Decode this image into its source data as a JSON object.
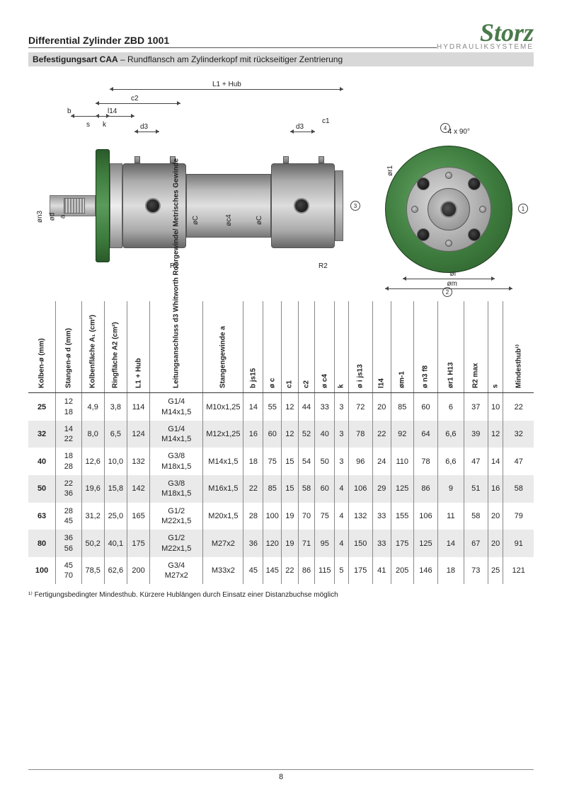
{
  "header": {
    "title": "Differential Zylinder ZBD 1001",
    "logo_main": "Storz",
    "logo_sub": "HYDRAULIKSYSTEME"
  },
  "subtitle": {
    "bold": "Befestigungsart CAA",
    "rest": " – Rundflansch am Zylinderkopf mit rückseitiger Zentrierung"
  },
  "diagram": {
    "flange_color": "#3d7a3d",
    "metal_light": "#ddd",
    "metal_dark": "#777",
    "labels": {
      "l1": "L1 + Hub",
      "c2": "c2",
      "b": "b",
      "l14": "l14",
      "s": "s",
      "k": "k",
      "d3a": "d3",
      "d3b": "d3",
      "c1": "c1",
      "on3": "øn3",
      "od": "ød",
      "a": "a",
      "oc_l": "øC",
      "oc4": "øc4",
      "oc_r": "øC",
      "r2a": "R2",
      "r2b": "R2",
      "angle": "4 x 90°",
      "or1": "ør1",
      "oi": "øi",
      "om": "øm",
      "co1": "1",
      "co2": "2",
      "co3": "3",
      "co4": "4"
    }
  },
  "table": {
    "columns": [
      "Kolben-ø (mm)",
      "Stangen-ø d (mm)",
      "Kolbenfläche A₁ (cm²)",
      "Ringfläche A2 (cm²)",
      "L1 + Hub",
      "Leitungsanschluss d3\nWhitworth Rohrgewinde/\nMetrisches Gewinde",
      "Stangengewinde a",
      "b js15",
      "ø c",
      "c1",
      "c2",
      "ø c4",
      "k",
      "ø i js13",
      "l14",
      "øm-1",
      "ø n3 f8",
      "ør1 H13",
      "R2 max",
      "s",
      "Mindesthub¹⁾"
    ],
    "rows": [
      {
        "kolben": "25",
        "stangen": [
          "12",
          "18"
        ],
        "a1": "4,9",
        "a2": "3,8",
        "l1": "114",
        "d3": [
          "G1/4",
          "M14x1,5"
        ],
        "a": "M10x1,25",
        "b": "14",
        "c": "55",
        "c1": "12",
        "c2": "44",
        "c4": "33",
        "k": "3",
        "i": "72",
        "l14": "20",
        "m": "85",
        "n3": "60",
        "r1": "6",
        "r2": "37",
        "s": "10",
        "min": "22"
      },
      {
        "kolben": "32",
        "stangen": [
          "14",
          "22"
        ],
        "a1": "8,0",
        "a2": "6,5",
        "l1": "124",
        "d3": [
          "G1/4",
          "M14x1,5"
        ],
        "a": "M12x1,25",
        "b": "16",
        "c": "60",
        "c1": "12",
        "c2": "52",
        "c4": "40",
        "k": "3",
        "i": "78",
        "l14": "22",
        "m": "92",
        "n3": "64",
        "r1": "6,6",
        "r2": "39",
        "s": "12",
        "min": "32"
      },
      {
        "kolben": "40",
        "stangen": [
          "18",
          "28"
        ],
        "a1": "12,6",
        "a2": "10,0",
        "l1": "132",
        "d3": [
          "G3/8",
          "M18x1,5"
        ],
        "a": "M14x1,5",
        "b": "18",
        "c": "75",
        "c1": "15",
        "c2": "54",
        "c4": "50",
        "k": "3",
        "i": "96",
        "l14": "24",
        "m": "110",
        "n3": "78",
        "r1": "6,6",
        "r2": "47",
        "s": "14",
        "min": "47"
      },
      {
        "kolben": "50",
        "stangen": [
          "22",
          "36"
        ],
        "a1": "19,6",
        "a2": "15,8",
        "l1": "142",
        "d3": [
          "G3/8",
          "M18x1,5"
        ],
        "a": "M16x1,5",
        "b": "22",
        "c": "85",
        "c1": "15",
        "c2": "58",
        "c4": "60",
        "k": "4",
        "i": "106",
        "l14": "29",
        "m": "125",
        "n3": "86",
        "r1": "9",
        "r2": "51",
        "s": "16",
        "min": "58"
      },
      {
        "kolben": "63",
        "stangen": [
          "28",
          "45"
        ],
        "a1": "31,2",
        "a2": "25,0",
        "l1": "165",
        "d3": [
          "G1/2",
          "M22x1,5"
        ],
        "a": "M20x1,5",
        "b": "28",
        "c": "100",
        "c1": "19",
        "c2": "70",
        "c4": "75",
        "k": "4",
        "i": "132",
        "l14": "33",
        "m": "155",
        "n3": "106",
        "r1": "11",
        "r2": "58",
        "s": "20",
        "min": "79"
      },
      {
        "kolben": "80",
        "stangen": [
          "36",
          "56"
        ],
        "a1": "50,2",
        "a2": "40,1",
        "l1": "175",
        "d3": [
          "G1/2",
          "M22x1,5"
        ],
        "a": "M27x2",
        "b": "36",
        "c": "120",
        "c1": "19",
        "c2": "71",
        "c4": "95",
        "k": "4",
        "i": "150",
        "l14": "33",
        "m": "175",
        "n3": "125",
        "r1": "14",
        "r2": "67",
        "s": "20",
        "min": "91"
      },
      {
        "kolben": "100",
        "stangen": [
          "45",
          "70"
        ],
        "a1": "78,5",
        "a2": "62,6",
        "l1": "200",
        "d3": [
          "G3/4",
          "M27x2"
        ],
        "a": "M33x2",
        "b": "45",
        "c": "145",
        "c1": "22",
        "c2": "86",
        "c4": "115",
        "k": "5",
        "i": "175",
        "l14": "41",
        "m": "205",
        "n3": "146",
        "r1": "18",
        "r2": "73",
        "s": "25",
        "min": "121"
      }
    ]
  },
  "footnote": "¹⁾ Fertigungsbedingter Mindesthub. Kürzere Hublängen durch Einsatz einer Distanzbuchse möglich",
  "page_number": "8"
}
